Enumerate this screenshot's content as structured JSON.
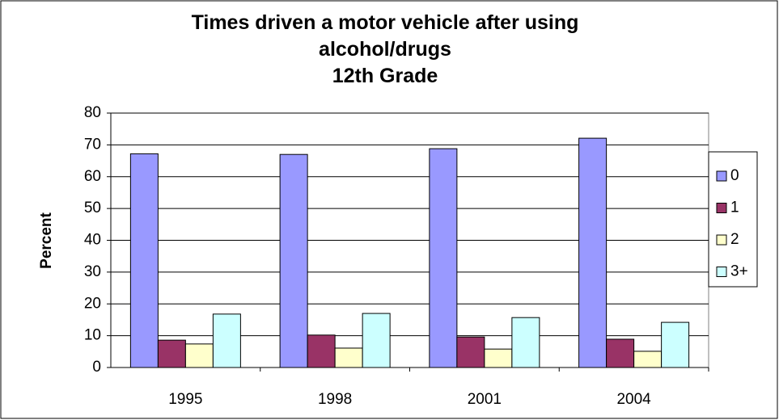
{
  "chart_data": {
    "type": "bar",
    "title": "Times driven a motor vehicle after using alcohol/drugs",
    "subtitle": "12th Grade",
    "y_label": "Percent",
    "categories": [
      "1995",
      "1998",
      "2001",
      "2004"
    ],
    "series": [
      {
        "name": "0",
        "color": "#9999ff",
        "values": [
          67.2,
          67,
          68.8,
          72.1
        ]
      },
      {
        "name": "1",
        "color": "#993366",
        "values": [
          8.6,
          10.2,
          9.6,
          8.9
        ]
      },
      {
        "name": "2",
        "color": "#ffffcc",
        "values": [
          7.4,
          6.1,
          5.8,
          5.1
        ]
      },
      {
        "name": "3+",
        "color": "#ccffff",
        "values": [
          16.8,
          17,
          15.7,
          14.2
        ]
      }
    ],
    "ylim": [
      0,
      80
    ],
    "yticks": [
      0,
      10,
      20,
      30,
      40,
      50,
      60,
      70,
      80
    ],
    "grid": true,
    "legend": "right"
  }
}
